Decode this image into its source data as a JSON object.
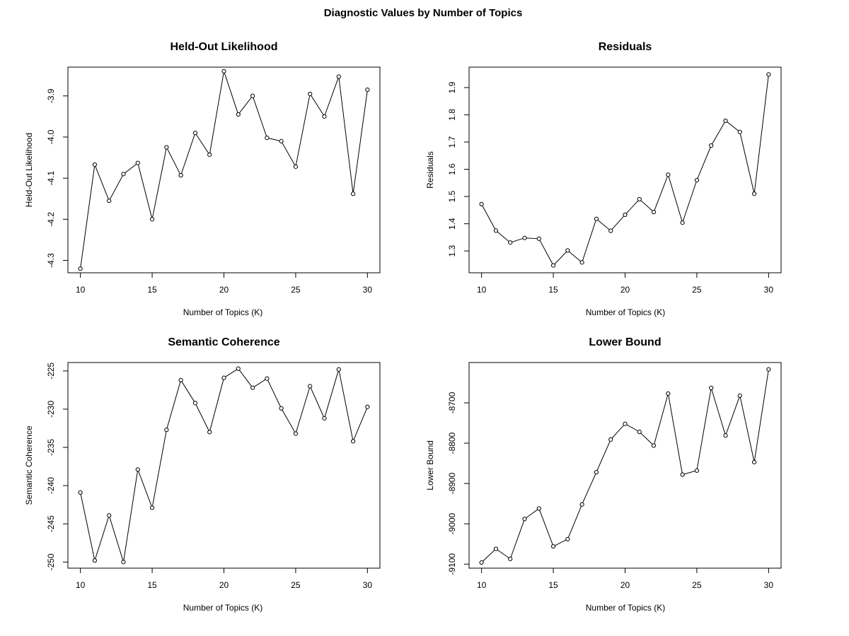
{
  "page": {
    "title": "Diagnostic Values by Number of Topics"
  },
  "chart_data": [
    {
      "type": "line",
      "title": "Held-Out Likelihood",
      "xlabel": "Number of Topics (K)",
      "ylabel": "Held-Out Likelihood",
      "x": [
        10,
        11,
        12,
        13,
        14,
        15,
        16,
        17,
        18,
        19,
        20,
        21,
        22,
        23,
        24,
        25,
        26,
        27,
        28,
        29,
        30
      ],
      "values": [
        -4.32,
        -4.067,
        -4.155,
        -4.09,
        -4.063,
        -4.2,
        -4.025,
        -4.093,
        -3.99,
        -4.043,
        -3.84,
        -3.945,
        -3.9,
        -4.002,
        -4.01,
        -4.072,
        -3.895,
        -3.95,
        -3.853,
        -4.138,
        -3.885
      ],
      "xlim": [
        10,
        30
      ],
      "ylim": [
        -4.33,
        -3.83
      ],
      "xticks": [
        10,
        15,
        20,
        25,
        30
      ],
      "yticks": [
        -4.3,
        -4.2,
        -4.1,
        -4.0,
        -3.9
      ],
      "ytick_labels": [
        "-4.3",
        "-4.2",
        "-4.1",
        "-4.0",
        "-3.9"
      ],
      "grid": false,
      "marker": "open-circle"
    },
    {
      "type": "line",
      "title": "Residuals",
      "xlabel": "Number of Topics (K)",
      "ylabel": "Residuals",
      "x": [
        10,
        11,
        12,
        13,
        14,
        15,
        16,
        17,
        18,
        19,
        20,
        21,
        22,
        23,
        24,
        25,
        26,
        27,
        28,
        29,
        30
      ],
      "values": [
        1.472,
        1.375,
        1.331,
        1.348,
        1.345,
        1.247,
        1.302,
        1.258,
        1.418,
        1.374,
        1.433,
        1.49,
        1.443,
        1.58,
        1.404,
        1.56,
        1.687,
        1.778,
        1.737,
        1.51,
        1.948
      ],
      "xlim": [
        10,
        30
      ],
      "ylim": [
        1.22,
        1.975
      ],
      "xticks": [
        10,
        15,
        20,
        25,
        30
      ],
      "yticks": [
        1.3,
        1.4,
        1.5,
        1.6,
        1.7,
        1.8,
        1.9
      ],
      "ytick_labels": [
        "1.3",
        "1.4",
        "1.5",
        "1.6",
        "1.7",
        "1.8",
        "1.9"
      ],
      "grid": false,
      "marker": "open-circle"
    },
    {
      "type": "line",
      "title": "Semantic Coherence",
      "xlabel": "Number of Topics (K)",
      "ylabel": "Semantic Coherence",
      "x": [
        10,
        11,
        12,
        13,
        14,
        15,
        16,
        17,
        18,
        19,
        20,
        21,
        22,
        23,
        24,
        25,
        26,
        27,
        28,
        29,
        30
      ],
      "values": [
        -240.9,
        -249.8,
        -243.9,
        -250.0,
        -237.9,
        -242.9,
        -232.7,
        -226.2,
        -229.2,
        -233.0,
        -225.9,
        -224.7,
        -227.2,
        -226.0,
        -229.9,
        -233.2,
        -227.0,
        -231.2,
        -224.8,
        -234.2,
        -229.7
      ],
      "xlim": [
        10,
        30
      ],
      "ylim": [
        -250.8,
        -223.9
      ],
      "xticks": [
        10,
        15,
        20,
        25,
        30
      ],
      "yticks": [
        -250,
        -245,
        -240,
        -235,
        -230,
        -225
      ],
      "ytick_labels": [
        "-250",
        "-245",
        "-240",
        "-235",
        "-230",
        "-225"
      ],
      "grid": false,
      "marker": "open-circle"
    },
    {
      "type": "line",
      "title": "Lower Bound",
      "xlabel": "Number of Topics (K)",
      "ylabel": "Lower Bound",
      "x": [
        10,
        11,
        12,
        13,
        14,
        15,
        16,
        17,
        18,
        19,
        20,
        21,
        22,
        23,
        24,
        25,
        26,
        27,
        28,
        29,
        30
      ],
      "values": [
        -9096,
        -9062,
        -9087,
        -8988,
        -8962,
        -9056,
        -9038,
        -8952,
        -8872,
        -8791,
        -8752,
        -8772,
        -8806,
        -8677,
        -8878,
        -8868,
        -8663,
        -8781,
        -8682,
        -8847,
        -8617
      ],
      "xlim": [
        10,
        30
      ],
      "ylim": [
        -9110,
        -8600
      ],
      "xticks": [
        10,
        15,
        20,
        25,
        30
      ],
      "yticks": [
        -9100,
        -9000,
        -8900,
        -8800,
        -8700
      ],
      "ytick_labels": [
        "-9100",
        "-9000",
        "-8900",
        "-8800",
        "-8700"
      ],
      "grid": false,
      "marker": "open-circle"
    }
  ]
}
